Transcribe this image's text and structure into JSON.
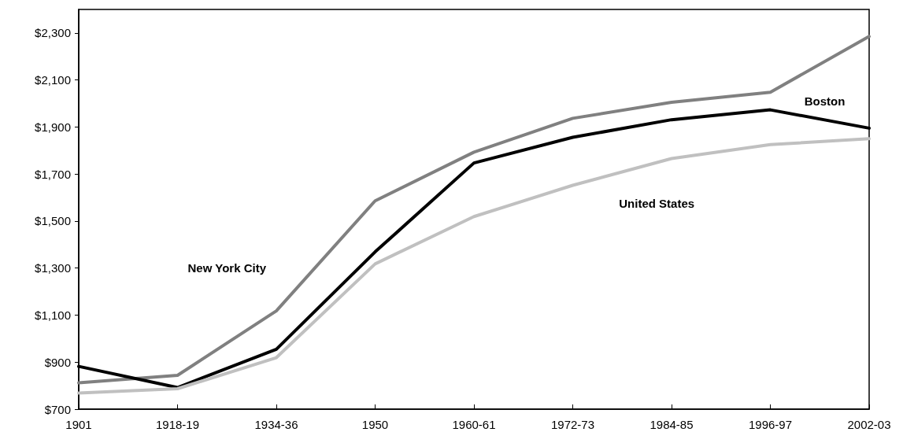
{
  "chart_data": {
    "type": "line",
    "categories": [
      "1901",
      "1918-19",
      "1934-36",
      "1950",
      "1960-61",
      "1972-73",
      "1984-85",
      "1996-97",
      "2002-03"
    ],
    "series": [
      {
        "name": "New York City",
        "color": "#808080",
        "values": [
          812,
          844,
          1118,
          1586,
          1793,
          1937,
          2005,
          2048,
          2285
        ]
      },
      {
        "name": "Boston",
        "color": "#000000",
        "values": [
          882,
          792,
          955,
          1369,
          1747,
          1856,
          1931,
          1973,
          1895
        ]
      },
      {
        "name": "United States",
        "color": "#c0c0c0",
        "values": [
          769,
          787,
          919,
          1318,
          1519,
          1652,
          1766,
          1825,
          1850
        ]
      }
    ],
    "ylim": [
      700,
      2400
    ],
    "yticks": [
      {
        "value": 700,
        "label": "$700"
      },
      {
        "value": 900,
        "label": "$900"
      },
      {
        "value": 1100,
        "label": "$1,100"
      },
      {
        "value": 1300,
        "label": "$1,300"
      },
      {
        "value": 1500,
        "label": "$1,500"
      },
      {
        "value": 1700,
        "label": "$1,700"
      },
      {
        "value": 1900,
        "label": "$1,900"
      },
      {
        "value": 2100,
        "label": "$2,100"
      },
      {
        "value": 2300,
        "label": "$2,300"
      }
    ],
    "grid": false,
    "legend": false,
    "marker": "none",
    "line_style": "solid"
  }
}
